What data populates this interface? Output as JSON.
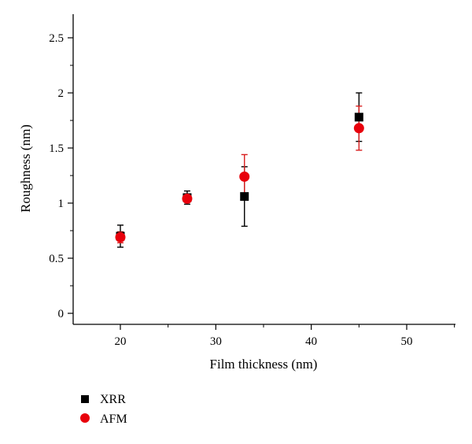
{
  "chart_data": {
    "type": "scatter",
    "title": "",
    "xlabel": "Film thickness (nm)",
    "ylabel": "Roughness (nm)",
    "xlim": [
      15,
      55
    ],
    "ylim": [
      -0.1,
      2.8
    ],
    "xticks": [
      20,
      30,
      40,
      50
    ],
    "xtick_labels": [
      "20",
      "30",
      "40",
      "50"
    ],
    "yticks": [
      0,
      0.5,
      1,
      1.5,
      2,
      2.5
    ],
    "ytick_labels": [
      "0",
      "0.5",
      "1",
      "1.5",
      "2",
      "2.5"
    ],
    "grid": false,
    "legend_position": "bottom-left, below plot",
    "series": [
      {
        "name": "XRR",
        "marker": "square",
        "color": "#000000",
        "errorbar_color": "#000000",
        "points": [
          {
            "x": 20,
            "y": 0.7,
            "err": 0.1
          },
          {
            "x": 27,
            "y": 1.05,
            "err": 0.06
          },
          {
            "x": 33,
            "y": 1.06,
            "err": 0.27
          },
          {
            "x": 45,
            "y": 1.78,
            "err": 0.22
          }
        ]
      },
      {
        "name": "AFM",
        "marker": "circle",
        "color": "#e8000b",
        "errorbar_color": "#d81e1e",
        "points": [
          {
            "x": 20,
            "y": 0.69,
            "err": 0.05
          },
          {
            "x": 27,
            "y": 1.04,
            "err": 0.03
          },
          {
            "x": 33,
            "y": 1.24,
            "err": 0.2
          },
          {
            "x": 45,
            "y": 1.68,
            "err": 0.2
          }
        ]
      }
    ]
  }
}
